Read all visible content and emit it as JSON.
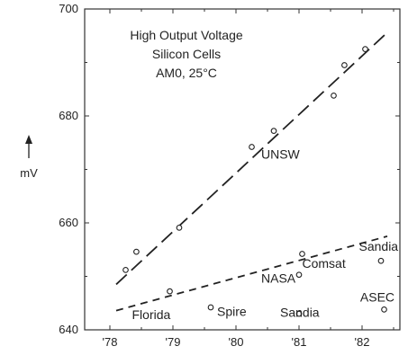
{
  "chart_data": {
    "type": "scatter",
    "title_lines": [
      "High Output Voltage",
      "Silicon Cells",
      "AM0, 25°C"
    ],
    "ylabel": "mV",
    "xlim": [
      1977.6,
      1982.6
    ],
    "ylim": [
      640,
      700
    ],
    "x_ticks": [
      {
        "value": 1978,
        "label": "'78"
      },
      {
        "value": 1979,
        "label": "'79"
      },
      {
        "value": 1980,
        "label": "'80"
      },
      {
        "value": 1981,
        "label": "'81"
      },
      {
        "value": 1982,
        "label": "'82"
      }
    ],
    "y_ticks": [
      {
        "value": 640,
        "label": "640"
      },
      {
        "value": 660,
        "label": "660"
      },
      {
        "value": 680,
        "label": "680"
      },
      {
        "value": 700,
        "label": "700"
      }
    ],
    "series": [
      {
        "marker": "open-circle",
        "points": [
          {
            "x": 1978.42,
            "y": 654.6
          },
          {
            "x": 1978.25,
            "y": 651.2
          },
          {
            "x": 1979.1,
            "y": 659.1
          },
          {
            "x": 1980.25,
            "y": 674.2
          },
          {
            "x": 1980.6,
            "y": 677.2
          },
          {
            "x": 1981.55,
            "y": 683.8
          },
          {
            "x": 1981.72,
            "y": 689.5
          },
          {
            "x": 1982.05,
            "y": 692.5
          }
        ],
        "trend": [
          [
            1978.1,
            648.5
          ],
          [
            1982.4,
            695.6
          ]
        ]
      },
      {
        "marker": "open-circle",
        "points": [
          {
            "x": 1978.95,
            "y": 647.2
          },
          {
            "x": 1979.6,
            "y": 644.2
          },
          {
            "x": 1981.0,
            "y": 643.0
          },
          {
            "x": 1981.0,
            "y": 650.3
          },
          {
            "x": 1981.05,
            "y": 654.2
          },
          {
            "x": 1982.3,
            "y": 652.9
          },
          {
            "x": 1982.35,
            "y": 643.8
          }
        ],
        "trend": [
          [
            1978.1,
            643.6
          ],
          [
            1982.4,
            657.5
          ]
        ]
      }
    ],
    "annotations": [
      {
        "text": "UNSW",
        "x": 1980.4,
        "y": 672.0
      },
      {
        "text": "Florida",
        "x": 1978.35,
        "y": 642.0
      },
      {
        "text": "Spire",
        "x": 1979.7,
        "y": 642.6
      },
      {
        "text": "Sandia",
        "x": 1980.7,
        "y": 642.4
      },
      {
        "text": "NASA",
        "x": 1980.4,
        "y": 648.8
      },
      {
        "text": "Comsat",
        "x": 1981.05,
        "y": 651.6
      },
      {
        "text": "Sandia",
        "x": 1981.95,
        "y": 654.8
      },
      {
        "text": "ASEC",
        "x": 1981.97,
        "y": 645.3
      }
    ]
  }
}
